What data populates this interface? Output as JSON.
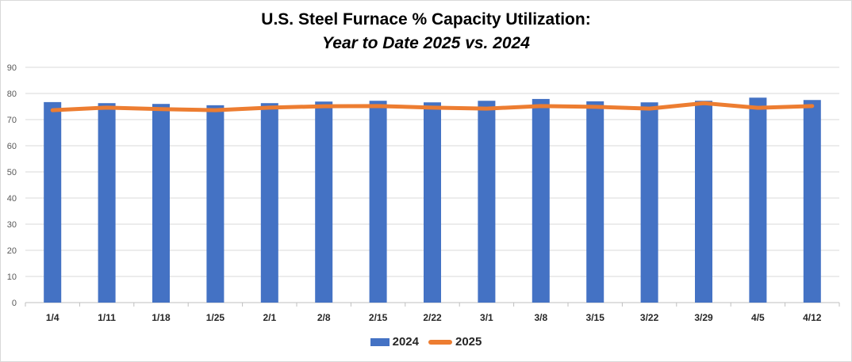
{
  "title": {
    "line1": "U.S. Steel Furnace % Capacity Utilization:",
    "line2": "Year to Date 2025 vs. 2024"
  },
  "colors": {
    "bar_2024": "#4472c4",
    "line_2025": "#ed7d31",
    "gridline": "#d9d9d9",
    "axis_text": "#595959",
    "category_text": "#262626"
  },
  "chart_data": {
    "type": "bar",
    "categories": [
      "1/4",
      "1/11",
      "1/18",
      "1/25",
      "2/1",
      "2/8",
      "2/15",
      "2/22",
      "3/1",
      "3/8",
      "3/15",
      "3/22",
      "3/29",
      "4/5",
      "4/12"
    ],
    "series": [
      {
        "name": "2024",
        "type": "bar",
        "values": [
          76.7,
          76.3,
          76.0,
          75.5,
          76.3,
          76.9,
          77.2,
          76.6,
          77.2,
          77.9,
          77.0,
          76.6,
          77.2,
          78.4,
          77.5
        ]
      },
      {
        "name": "2025",
        "type": "line",
        "values": [
          73.6,
          74.6,
          74.0,
          73.6,
          74.6,
          75.1,
          75.2,
          74.6,
          74.2,
          75.2,
          74.9,
          74.2,
          76.3,
          74.5,
          75.2
        ]
      }
    ],
    "ylim": [
      0,
      90
    ],
    "yticks": [
      0,
      10,
      20,
      30,
      40,
      50,
      60,
      70,
      80,
      90
    ],
    "xlabel": "",
    "ylabel": "",
    "grid": true,
    "legend_position": "bottom"
  }
}
